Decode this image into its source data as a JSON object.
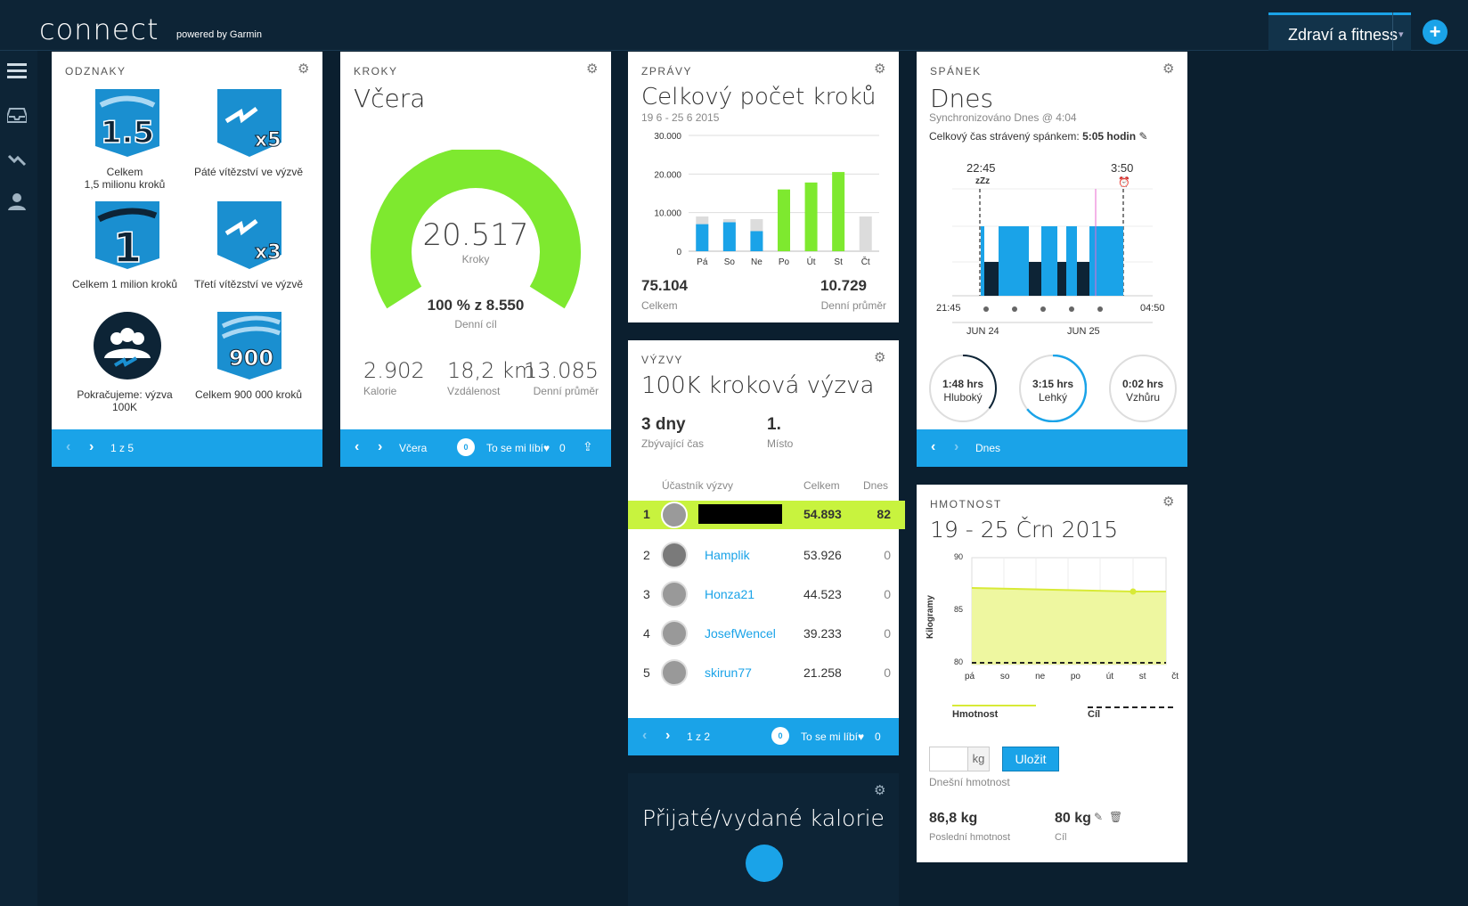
{
  "header": {
    "logo": "connect",
    "logo_sub": "powered by Garmin",
    "context": "Zdraví a fitness",
    "caret": "▾",
    "plus": "+"
  },
  "badges_card": {
    "title": "ODZNAKY",
    "badges": [
      {
        "label": "Celkem\n1,5 milionu kroků",
        "art": "1.5"
      },
      {
        "label": "Páté vítězství ve výzvě",
        "art": "x5"
      },
      {
        "label": "Celkem 1 milion kroků",
        "art": "1"
      },
      {
        "label": "Třetí vítězství ve výzvě",
        "art": "x3"
      },
      {
        "label": "Pokračujeme: výzva\n100K",
        "art": "group"
      },
      {
        "label": "Celkem 900 000 kroků",
        "art": "900"
      }
    ],
    "pager": "1 z 5"
  },
  "steps_card": {
    "title": "KROKY",
    "heading": "Včera",
    "steps": "20.517",
    "steps_unit": "Kroky",
    "goal_pct": "100 % z 8.550",
    "goal_label": "Denní cíl",
    "gauge_fraction": 1.0,
    "stats": [
      {
        "value": "2.902",
        "label": "Kalorie"
      },
      {
        "value": "18,2 km",
        "label": "Vzdálenost"
      },
      {
        "value": "13.085",
        "label": "Denní průměr"
      }
    ],
    "footer_day": "Včera",
    "likes_count": "0",
    "like_text": "To se mi líbí♥",
    "like_num": "0"
  },
  "messages_card": {
    "title": "ZPRÁVY",
    "heading": "Celkový počet kroků",
    "range": "19 6 - 25 6 2015",
    "total": "75.104",
    "total_label": "Celkem",
    "avg": "10.729",
    "avg_label": "Denní průměr"
  },
  "chart_data": {
    "type": "bar",
    "categories": [
      "Pá",
      "So",
      "Ne",
      "Po",
      "Út",
      "St",
      "Čt"
    ],
    "series": [
      {
        "values": [
          7000,
          7500,
          5200,
          16000,
          17800,
          20517,
          0
        ]
      },
      {
        "values": [
          9000,
          8300,
          8300,
          0,
          0,
          0,
          9000
        ]
      }
    ],
    "yticks": [
      "30.000",
      "20.000",
      "10.000",
      "0"
    ],
    "ylim": [
      0,
      30000
    ],
    "colors": {
      "past": "#1aa3e8",
      "goal_met": "#7ee92f",
      "goal_gray": "#dcdcdc"
    }
  },
  "challenge_card": {
    "title": "VÝZVY",
    "heading": "100K kroková výzva",
    "remaining": "3 dny",
    "remaining_label": "Zbývající čas",
    "place": "1.",
    "place_label": "Místo",
    "col_participant": "Účastník výzvy",
    "col_total": "Celkem",
    "col_today": "Dnes",
    "rows": [
      {
        "rank": "1",
        "name": "",
        "total": "54.893",
        "today": "82",
        "highlight": true
      },
      {
        "rank": "2",
        "name": "Hamplik",
        "total": "53.926",
        "today": "0"
      },
      {
        "rank": "3",
        "name": "Honza21",
        "total": "44.523",
        "today": "0"
      },
      {
        "rank": "4",
        "name": "JosefWencel",
        "total": "39.233",
        "today": "0"
      },
      {
        "rank": "5",
        "name": "skirun77",
        "total": "21.258",
        "today": "0"
      }
    ],
    "pager": "1 z 2",
    "likes_count": "0",
    "like_text": "To se mi líbí♥",
    "like_num": "0"
  },
  "calories_card": {
    "heading": "Přijaté/vydané kalorie"
  },
  "sleep_card": {
    "title": "SPÁNEK",
    "heading": "Dnes",
    "synced": "Synchronizováno Dnes @ 4:04",
    "total_label": "Celkový čas strávený spánkem: ",
    "total_value": "5:05 hodin",
    "start": "22:45",
    "end": "3:50",
    "axis_left": "21:45",
    "axis_right": "04:50",
    "day1": "JUN 24",
    "day2": "JUN 25",
    "zzz": "zZz",
    "rings": [
      {
        "value": "1:48 hrs",
        "label": "Hluboký",
        "fraction": 0.35,
        "color": "#0d2436"
      },
      {
        "value": "3:15 hrs",
        "label": "Lehký",
        "fraction": 0.64,
        "color": "#1aa3e8"
      },
      {
        "value": "0:02 hrs",
        "label": "Vzhůru",
        "fraction": 0.0,
        "color": "#e86ad1"
      }
    ],
    "footer_day": "Dnes"
  },
  "weight_card": {
    "title": "HMOTNOST",
    "heading": "19 - 25 Črn 2015",
    "ylabel": "Kilogramy",
    "yticks": [
      "90",
      "85",
      "80"
    ],
    "xlabels": [
      "pá",
      "so",
      "ne",
      "po",
      "út",
      "st",
      "čt"
    ],
    "legend_weight": "Hmotnost",
    "legend_goal": "Cíl",
    "input_unit": "kg",
    "save": "Uložit",
    "today_label": "Dnešní hmotnost",
    "last_value": "86,8 kg",
    "last_label": "Poslední hmotnost",
    "goal_value": "80 kg",
    "goal_label": "Cíl"
  }
}
